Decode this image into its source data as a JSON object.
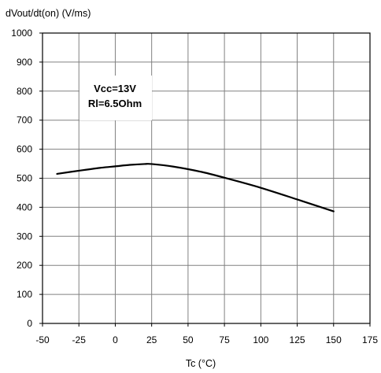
{
  "chart_data": {
    "type": "line",
    "ylabel": "dVout/dt(on) (V/ms)",
    "xlabel": "Tc (°C)",
    "xlim": [
      -50,
      175
    ],
    "ylim": [
      0,
      1000
    ],
    "x_ticks": [
      -50,
      -25,
      0,
      25,
      50,
      75,
      100,
      125,
      150,
      175
    ],
    "y_ticks": [
      0,
      100,
      200,
      300,
      400,
      500,
      600,
      700,
      800,
      900,
      1000
    ],
    "grid": true,
    "annotations": [
      "Vcc=13V",
      "Rl=6.5Ohm"
    ],
    "series": [
      {
        "x": [
          -40,
          -25,
          -10,
          0,
          10,
          20,
          25,
          40,
          60,
          80,
          100,
          125,
          150
        ],
        "y": [
          515,
          526,
          536,
          541,
          546,
          549,
          549,
          540,
          521,
          495,
          467,
          427,
          386
        ]
      }
    ],
    "colors": {
      "line": "#000000",
      "grid": "#808080",
      "axis": "#000000",
      "annotation_bg": "#ffffff"
    }
  }
}
